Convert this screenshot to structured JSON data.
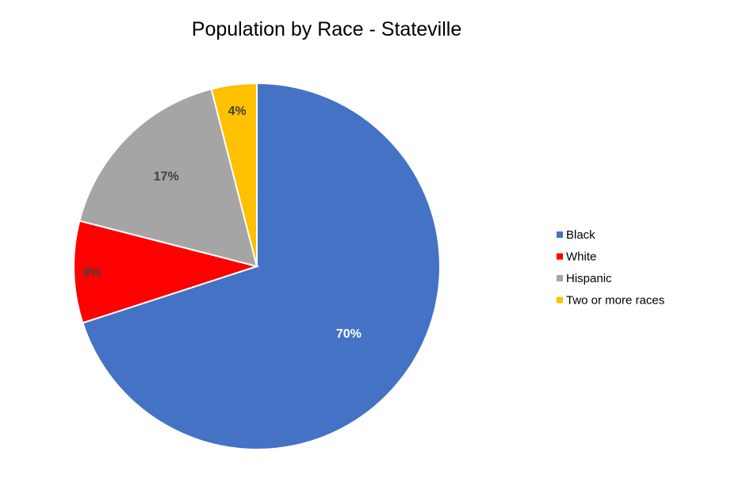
{
  "chart_data": {
    "type": "pie",
    "title": "Population by Race - Stateville",
    "categories": [
      "Black",
      "White",
      "Hispanic",
      "Two or more races"
    ],
    "values": [
      70,
      9,
      17,
      4
    ],
    "labels": [
      "70%",
      "9%",
      "17%",
      "4%"
    ],
    "colors": [
      "#4472C4",
      "#FF0000",
      "#A5A5A5",
      "#FFC000"
    ],
    "label_colors": [
      "#FFFFFF",
      "#404040",
      "#404040",
      "#404040"
    ],
    "legend_order": [
      0,
      1,
      2,
      3
    ],
    "legend_position": "right",
    "start_angle": "12 o'clock",
    "direction": "clockwise"
  }
}
